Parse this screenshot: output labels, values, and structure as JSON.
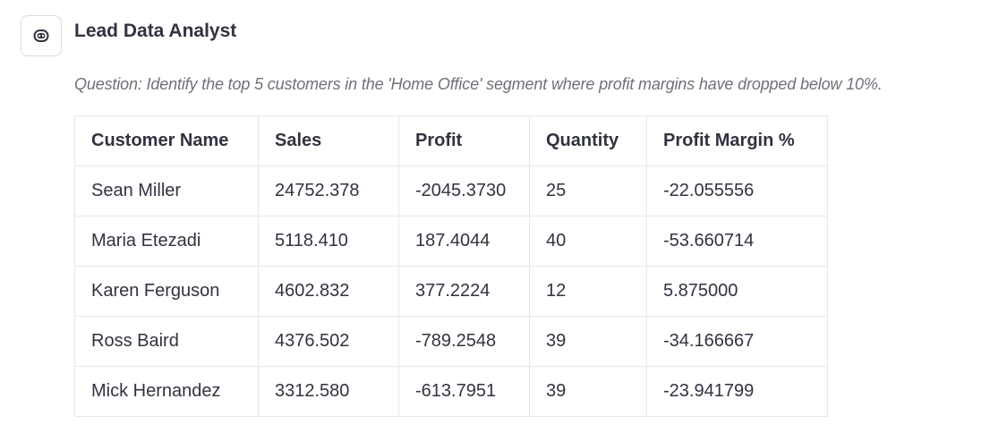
{
  "assistant": {
    "avatar_icon": "bot-face-icon",
    "name": "Lead Data Analyst"
  },
  "message": {
    "question": "Question: Identify the top 5 customers in the 'Home Office' segment where profit margins have dropped below 10%."
  },
  "table": {
    "headers": [
      "Customer Name",
      "Sales",
      "Profit",
      "Quantity",
      "Profit Margin %"
    ],
    "rows": [
      [
        "Sean Miller",
        "24752.378",
        "-2045.3730",
        "25",
        "-22.055556"
      ],
      [
        "Maria Etezadi",
        "5118.410",
        "187.4044",
        "40",
        "-53.660714"
      ],
      [
        "Karen Ferguson",
        "4602.832",
        "377.2224",
        "12",
        "5.875000"
      ],
      [
        "Ross Baird",
        "4376.502",
        "-789.2548",
        "39",
        "-34.166667"
      ],
      [
        "Mick Hernandez",
        "3312.580",
        "-613.7951",
        "39",
        "-23.941799"
      ]
    ]
  }
}
